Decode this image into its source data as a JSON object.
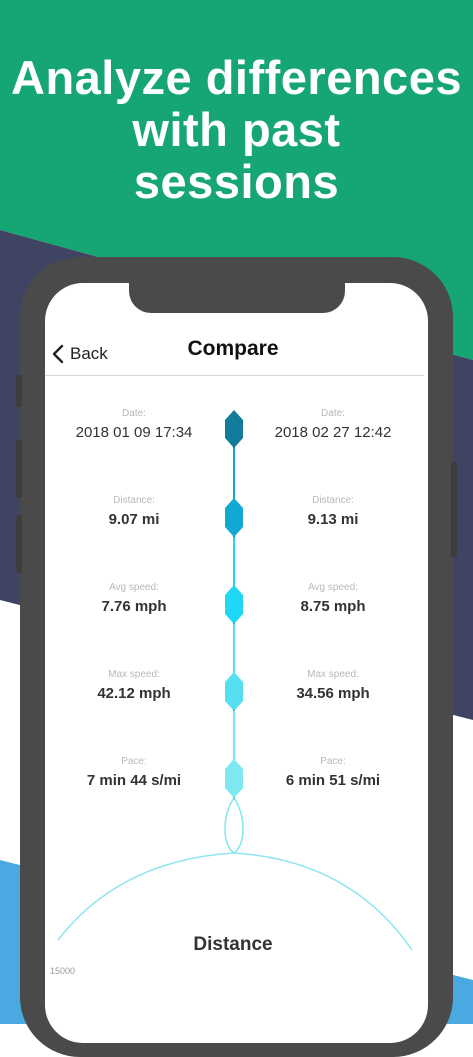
{
  "headline": {
    "line1": "Analyze differences",
    "line2": "with past",
    "line3": "sessions"
  },
  "colors": {
    "green": "#16a673",
    "dark_navy": "#3f4463",
    "blue": "#4aa9e0",
    "timeline_dark": "#137b9b",
    "timeline_mid": "#11a9d3",
    "timeline_bright": "#1ed8f5",
    "timeline_light": "#55dff0",
    "timeline_pale": "#7ee8f2"
  },
  "nav": {
    "back_label": "Back",
    "title": "Compare"
  },
  "stats": [
    {
      "label": "Date:",
      "left": "2018 01 09   17:34",
      "right": "2018 02 27   12:42"
    },
    {
      "label": "Distance:",
      "left": "9.07 mi",
      "right": "9.13 mi"
    },
    {
      "label": "Avg speed:",
      "left": "7.76 mph",
      "right": "8.75 mph"
    },
    {
      "label": "Max speed:",
      "left": "42.12 mph",
      "right": "34.56 mph"
    },
    {
      "label": "Pace:",
      "left": "7 min 44 s/mi",
      "right": "6 min 51 s/mi"
    }
  ],
  "chart": {
    "title": "Distance",
    "y_tick": "15000"
  }
}
